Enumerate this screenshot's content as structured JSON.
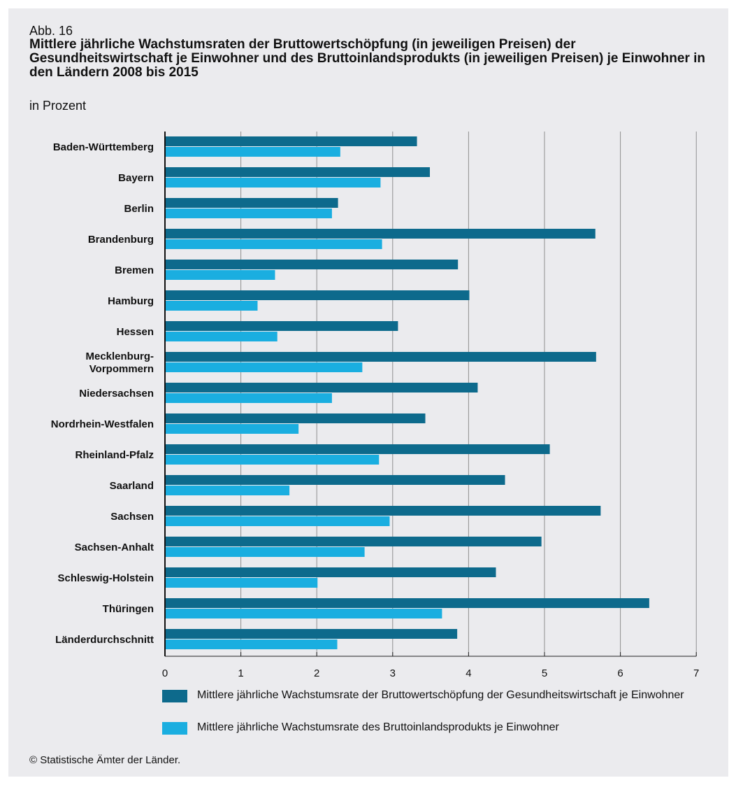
{
  "figure": {
    "number": "Abb. 16",
    "title": "Mittlere jährliche Wachstumsraten der Bruttowertschöpfung (in jeweiligen Preisen) der Gesundheitswirtschaft je Einwohner und des Bruttoinlandsprodukts (in jeweiligen Preisen) je Einwohner in den Ländern 2008 bis 2015",
    "subtitle": "in Prozent",
    "source": "© Statistische Ämter der Länder."
  },
  "colors": {
    "background": "#ebebee",
    "series_dark": "#0d6a8c",
    "series_light": "#1aaee0",
    "gridline": "#8f8f8f"
  },
  "chart_data": {
    "type": "bar",
    "orientation": "horizontal",
    "title": "Mittlere jährliche Wachstumsraten der Bruttowertschöpfung (in jeweiligen Preisen) der Gesundheitswirtschaft je Einwohner und des Bruttoinlandsprodukts (in jeweiligen Preisen) je Einwohner in den Ländern 2008 bis 2015",
    "subtitle": "in Prozent",
    "categories": [
      "Baden-Württemberg",
      "Bayern",
      "Berlin",
      "Brandenburg",
      "Bremen",
      "Hamburg",
      "Hessen",
      "Mecklenburg-Vorpommern",
      "Niedersachsen",
      "Nordrhein-Westfalen",
      "Rheinland-Pfalz",
      "Saarland",
      "Sachsen",
      "Sachsen-Anhalt",
      "Schleswig-Holstein",
      "Thüringen",
      "Länderdurchschnitt"
    ],
    "series": [
      {
        "name": "Mittlere jährliche Wachstumsrate der Bruttowertschöpfung der Gesundheitswirtschaft je Einwohner",
        "color": "#0d6a8c",
        "values": [
          3.32,
          3.49,
          2.28,
          5.67,
          3.86,
          4.01,
          3.07,
          5.68,
          4.12,
          3.43,
          5.07,
          4.48,
          5.74,
          4.96,
          4.36,
          6.38,
          3.85
        ]
      },
      {
        "name": "Mittlere jährliche Wachstumsrate des Bruttoinlandsprodukts je Einwohner",
        "color": "#1aaee0",
        "values": [
          2.31,
          2.84,
          2.2,
          2.86,
          1.45,
          1.22,
          1.48,
          2.6,
          2.2,
          1.76,
          2.82,
          1.64,
          2.96,
          2.63,
          2.01,
          3.65,
          2.27
        ]
      }
    ],
    "xlim": [
      0,
      7
    ],
    "xticks": [
      "0",
      "1",
      "2",
      "3",
      "4",
      "5",
      "6",
      "7"
    ],
    "xlabel": "",
    "ylabel": "",
    "grid": "vertical",
    "legend_position": "bottom"
  }
}
